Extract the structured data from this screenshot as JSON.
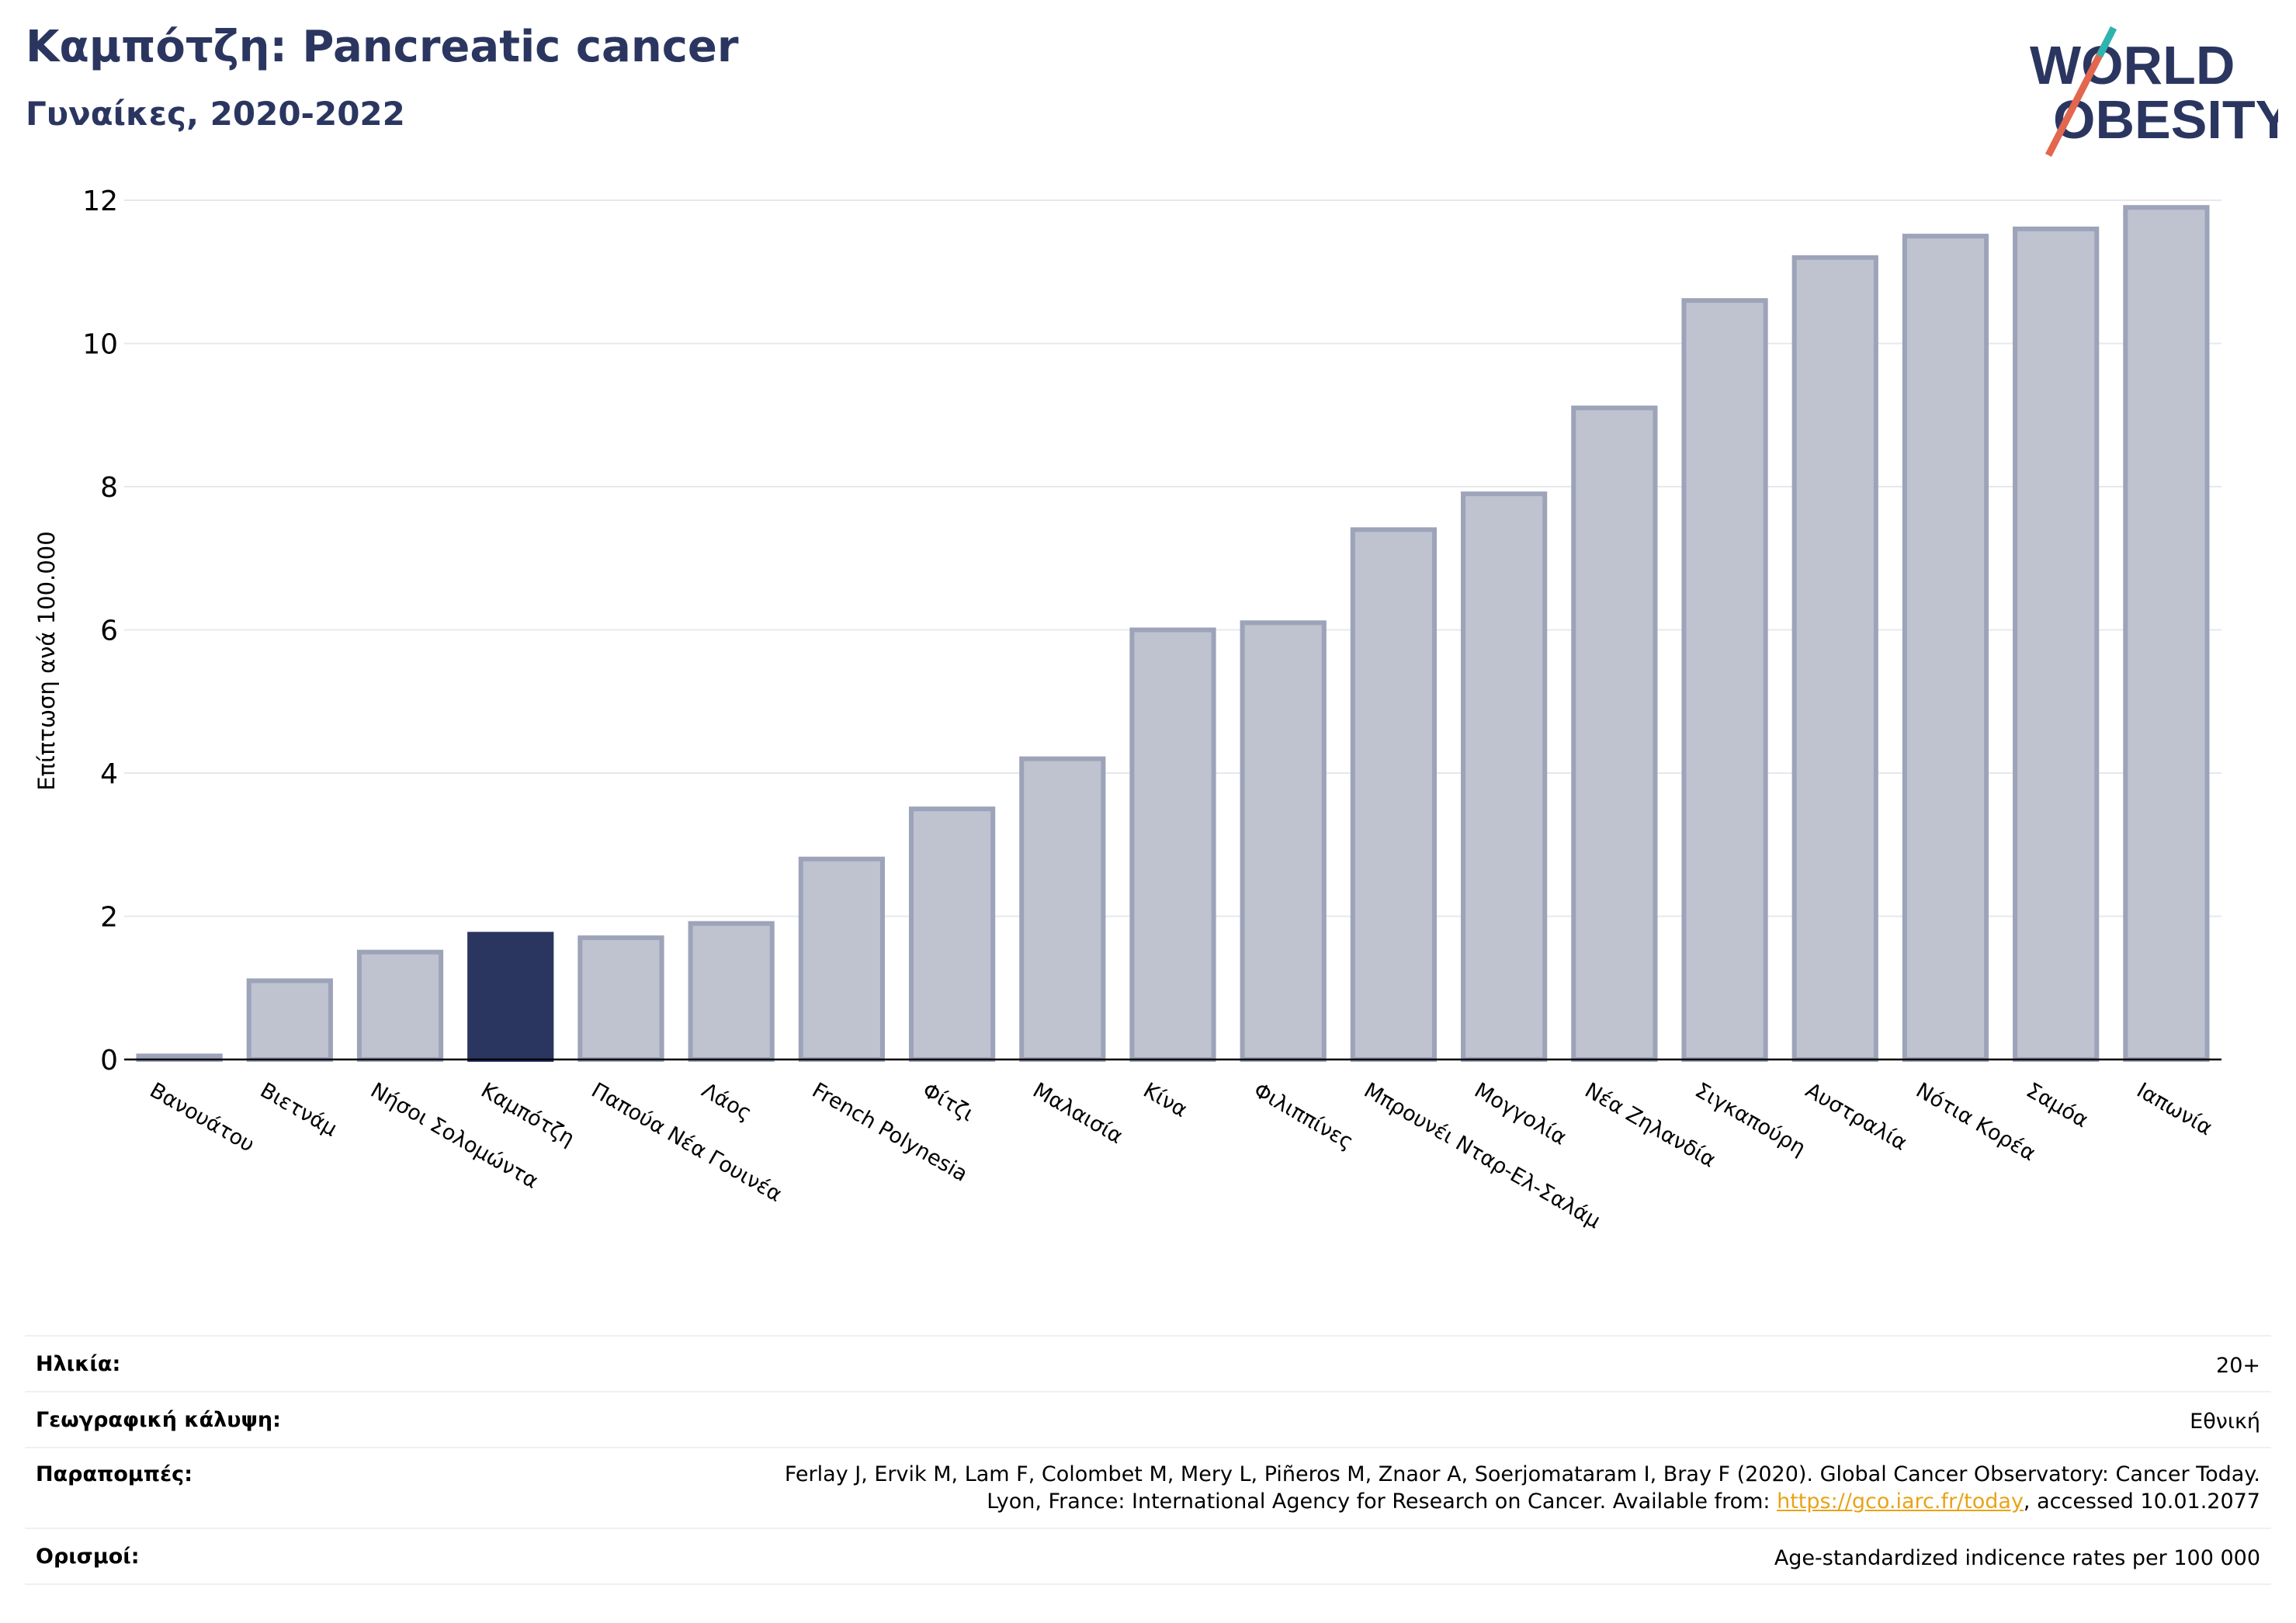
{
  "header": {
    "title": "Καμπότζη: Pancreatic cancer",
    "subtitle": "Γυναίκες, 2020-2022"
  },
  "logo": {
    "line1": "WORLD",
    "line2": "OBESITY"
  },
  "colors": {
    "highlight": "#2b3660",
    "bar_fill": "#bfc3cf",
    "bar_stroke": "#9da3b8",
    "grid": "#e6e8ee",
    "logo_teal": "#2bb5b0",
    "logo_red": "#e3664f"
  },
  "chart_data": {
    "type": "bar",
    "ylabel": "Επίπτωση ανά 100.000",
    "ylim": [
      0,
      12
    ],
    "yticks": [
      0,
      2,
      4,
      6,
      8,
      10,
      12
    ],
    "grid": true,
    "highlight": "Καμπότζη",
    "categories": [
      "Βανουάτου",
      "Βιετνάμ",
      "Νήσοι Σολομώντα",
      "Καμπότζη",
      "Παπούα Νέα Γουινέα",
      "Λάος",
      "French Polynesia",
      "Φίτζι",
      "Μαλαισία",
      "Κίνα",
      "Φιλιππίνες",
      "Μπρουνέι Νταρ-Ελ-Σαλάμ",
      "Μογγολία",
      "Νέα Ζηλανδία",
      "Σιγκαπούρη",
      "Αυστραλία",
      "Νότια Κορέα",
      "Σαμόα",
      "Ιαπωνία"
    ],
    "values": [
      0.05,
      1.1,
      1.5,
      1.75,
      1.7,
      1.9,
      2.8,
      3.5,
      4.2,
      6.0,
      6.1,
      7.4,
      7.9,
      9.1,
      10.6,
      11.2,
      11.5,
      11.6,
      11.9
    ]
  },
  "meta": {
    "age_label": "Ηλικία:",
    "age_value": "20+",
    "coverage_label": "Γεωγραφική κάλυψη:",
    "coverage_value": "Εθνική",
    "refs_label": "Παραπομπές:",
    "refs_line1": "Ferlay J, Ervik M, Lam F, Colombet M, Mery L, Piñeros M, Znaor A, Soerjomataram I, Bray F (2020). Global Cancer Observatory: Cancer Today.",
    "refs_line2_pre": "Lyon, France: International Agency for Research on Cancer. Available from: ",
    "refs_link": "https://gco.iarc.fr/today",
    "refs_line2_post": ", accessed 10.01.2077",
    "defs_label": "Ορισμοί:",
    "defs_value": "Age-standardized indicence rates per 100 000"
  }
}
